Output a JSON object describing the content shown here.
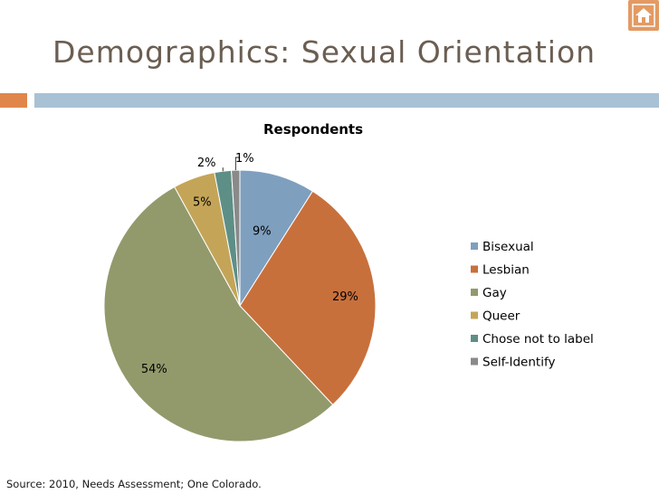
{
  "slide": {
    "title": "Demographics: Sexual Orientation",
    "source": "Source: 2010, Needs Assessment; One Colorado.",
    "home_icon": "home-icon",
    "accent_colors": [
      "#e0864a",
      "#a9c1d4"
    ]
  },
  "chart_data": {
    "type": "pie",
    "title": "Respondents",
    "legend_placement": "right",
    "categories": [
      "Bisexual",
      "Lesbian",
      "Gay",
      "Queer",
      "Chose not to label",
      "Self-Identify"
    ],
    "values": [
      9,
      29,
      54,
      5,
      2,
      1
    ],
    "labels": [
      "9%",
      "29%",
      "54%",
      "5%",
      "2%",
      "1%"
    ],
    "colors": [
      "#7f9fbf",
      "#c8703c",
      "#929a6c",
      "#c4a558",
      "#5e8f87",
      "#8a8a8a"
    ]
  }
}
